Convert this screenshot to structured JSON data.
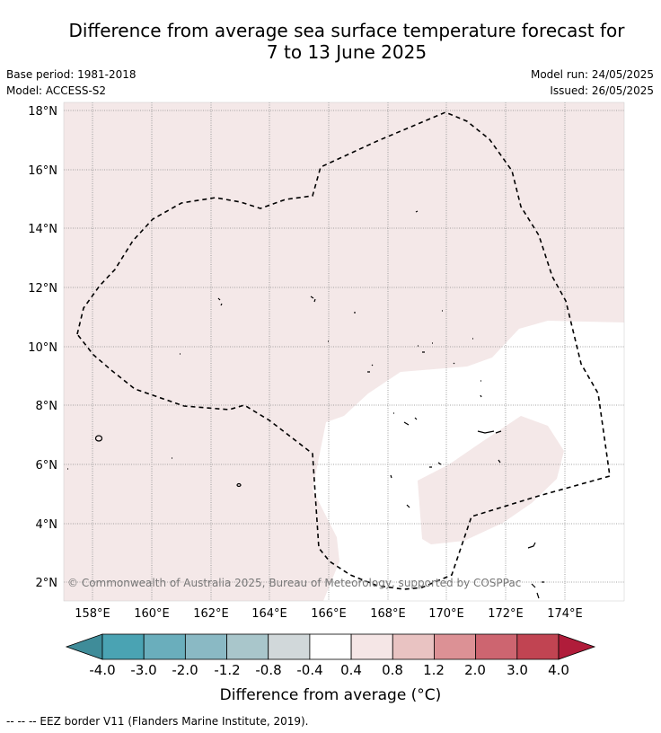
{
  "title_line1": "Difference from average sea surface temperature forecast for",
  "title_line2": "7 to 13 June 2025",
  "base_period": "Base period: 1981-2018",
  "model": "Model: ACCESS-S2",
  "model_run": "Model run: 24/05/2025",
  "issued": "Issued: 26/05/2025",
  "copyright": "© Commonwealth of Australia 2025, Bureau of Meteorology, supported by COSPPac",
  "colorbar_label": "Difference from average (°C)",
  "footer": "--  --  -- EEZ border V11 (Flanders Marine Institute, 2019).",
  "lon_labels": [
    "158°E",
    "160°E",
    "162°E",
    "164°E",
    "166°E",
    "168°E",
    "170°E",
    "172°E",
    "174°E"
  ],
  "lat_labels": [
    "18°N",
    "16°N",
    "14°N",
    "12°N",
    "10°N",
    "8°N",
    "6°N",
    "4°N",
    "2°N"
  ],
  "colorbar_ticks": [
    "-4.0",
    "-3.0",
    "-2.0",
    "-1.2",
    "-0.8",
    "-0.4",
    "0.4",
    "0.8",
    "1.2",
    "2.0",
    "3.0",
    "4.0"
  ],
  "colorbar_colors": [
    "#3f8c99",
    "#4aa3b3",
    "#6aaebc",
    "#8ab9c4",
    "#a9c6cb",
    "#d1d8da",
    "#ffffff",
    "#f5e6e6",
    "#e9c3c2",
    "#dc9195",
    "#cd6570",
    "#c14452",
    "#b01c3a"
  ],
  "anomaly_color": "#f4e8e8",
  "neutral_color": "#ffffff"
}
